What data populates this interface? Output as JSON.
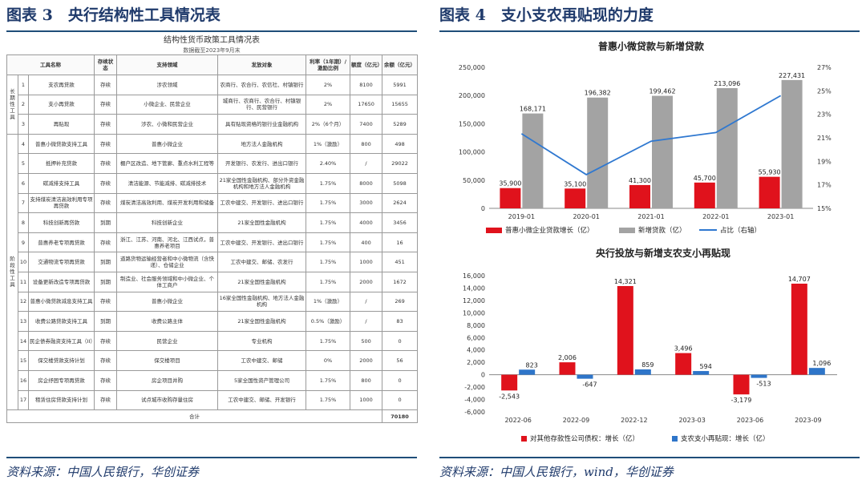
{
  "left": {
    "header": "图表 3　央行结构性工具情况表",
    "source": "资料来源：中国人民银行，华创证券",
    "table": {
      "title": "结构性货币政策工具情况表",
      "subtitle": "数据截至2023年9月末",
      "columns": [
        "工具名称",
        "存续状态",
        "支持领域",
        "发放对象",
        "利率（1年期）/激励比例",
        "额度（亿元）",
        "余额（亿元）"
      ],
      "groups": [
        {
          "label": "长期性工具",
          "rows": 3
        },
        {
          "label": "阶段性工具",
          "rows": 14
        }
      ],
      "rows": [
        [
          "1",
          "支农再贷款",
          "存续",
          "涉农领域",
          "农商行、农合行、农信社、村镇银行",
          "2%",
          "8100",
          "5991"
        ],
        [
          "2",
          "支小再贷款",
          "存续",
          "小微企业、民营企业",
          "城商行、农商行、农合行、村镇银行、民营银行",
          "2%",
          "17650",
          "15655"
        ],
        [
          "3",
          "再贴现",
          "存续",
          "涉农、小微和民营企业",
          "具有贴现资格的银行业金融机构",
          "2%（6个月）",
          "7400",
          "5289"
        ],
        [
          "4",
          "普惠小微贷款支持工具",
          "存续",
          "普惠小微企业",
          "地方法人金融机构",
          "1%（激励）",
          "800",
          "498"
        ],
        [
          "5",
          "抵押补充贷款",
          "存续",
          "棚户区改造、地下管廊、重点水利工程等",
          "开发银行、农发行、进出口银行",
          "2.40%",
          "/",
          "29022"
        ],
        [
          "6",
          "碳减排支持工具",
          "存续",
          "清洁能源、节能减排、碳减排技术",
          "21家全国性金融机构、部分外资金融机构和地方法人金融机构",
          "1.75%",
          "8000",
          "5098"
        ],
        [
          "7",
          "支持煤炭清洁高效利用专项再贷款",
          "存续",
          "煤炭清洁高效利用、煤炭开发利用和储备",
          "工农中建交、开发银行、进出口银行",
          "1.75%",
          "3000",
          "2624"
        ],
        [
          "8",
          "科技创新再贷款",
          "到期",
          "科技创新企业",
          "21家全国性金融机构",
          "1.75%",
          "4000",
          "3456"
        ],
        [
          "9",
          "普惠养老专项再贷款",
          "存续",
          "浙江、江苏、河南、河北、江西试点，普惠养老项目",
          "工农中建交、开发银行、进出口银行",
          "1.75%",
          "400",
          "16"
        ],
        [
          "10",
          "交通物流专项再贷款",
          "到期",
          "道路货物运输经营者和中小微物流（含快递）、仓储企业",
          "工农中建交、邮储、农发行",
          "1.75%",
          "1000",
          "451"
        ],
        [
          "11",
          "设备更新改造专项再贷款",
          "到期",
          "制造业、社会服务领域和中小微企业、个体工商户",
          "21家全国性金融机构",
          "1.75%",
          "2000",
          "1672"
        ],
        [
          "12",
          "普惠小微贷款减息支持工具",
          "存续",
          "普惠小微企业",
          "16家全国性金融机构、地方法人金融机构",
          "1%（激励）",
          "/",
          "269"
        ],
        [
          "13",
          "收费公路贷款支持工具",
          "到期",
          "收费公路主体",
          "21家全国性金融机构",
          "0.5%（激励）",
          "/",
          "83"
        ],
        [
          "14",
          "民企债券融资支持工具（II）",
          "存续",
          "民营企业",
          "专业机构",
          "1.75%",
          "500",
          "0"
        ],
        [
          "15",
          "保交楼贷款支持计划",
          "存续",
          "保交楼项目",
          "工农中建交、邮储",
          "0%",
          "2000",
          "56"
        ],
        [
          "16",
          "房企纾困专项再贷款",
          "存续",
          "房企项目并购",
          "5家全国性资产管理公司",
          "1.75%",
          "800",
          "0"
        ],
        [
          "17",
          "租赁住房贷款支持计划",
          "存续",
          "试点城市收购存量住房",
          "工农中建交、邮储、开发银行",
          "1.75%",
          "1000",
          "0"
        ]
      ],
      "total_label": "合计",
      "total_value": "70180"
    }
  },
  "right": {
    "header": "图表 4　支小支农再贴现的力度",
    "source": "资料来源：中国人民银行，wind，华创证券",
    "colors": {
      "red": "#e0121c",
      "gray": "#a3a3a3",
      "blue": "#2e75c9",
      "line": "#2f78d0"
    },
    "chart_data": [
      {
        "type": "bar",
        "title": "普惠小微贷款与新增贷款",
        "categories": [
          "2019-01",
          "2020-01",
          "2021-01",
          "2022-01",
          "2023-01"
        ],
        "series": [
          {
            "name": "普惠小微企业贷款增长（亿）",
            "type": "bar",
            "values": [
              35900,
              35100,
              41300,
              45700,
              55930
            ],
            "labels": [
              "35,900",
              "35,100",
              "41,300",
              "45,700",
              "55,930"
            ]
          },
          {
            "name": "新增贷款（亿）",
            "type": "bar",
            "values": [
              168171,
              196382,
              199462,
              213096,
              227431
            ],
            "labels": [
              "168,171",
              "196,382",
              "199,462",
              "213,096",
              "227,431"
            ]
          },
          {
            "name": "占比（右轴）",
            "type": "line",
            "axis": "right",
            "values": [
              21.35,
              17.87,
              20.71,
              21.45,
              24.59
            ]
          }
        ],
        "ylim": [
          0,
          250000
        ],
        "yticks": [
          "0",
          "50,000",
          "100,000",
          "150,000",
          "200,000",
          "250,000"
        ],
        "y2lim": [
          15,
          27
        ],
        "y2ticks": [
          "15%",
          "17%",
          "19%",
          "21%",
          "23%",
          "25%",
          "27%"
        ],
        "legend": "bottom"
      },
      {
        "type": "bar",
        "title": "央行投放与新增支农支小再贴现",
        "categories": [
          "2022-06",
          "2022-09",
          "2022-12",
          "2023-03",
          "2023-06",
          "2023-09"
        ],
        "series": [
          {
            "name": "对其他存款性公司债权：增长（亿）",
            "values": [
              -2543,
              2006,
              14321,
              3496,
              -3179,
              14707
            ],
            "labels": [
              "-2,543",
              "2,006",
              "14,321",
              "3,496",
              "-3,179",
              "14,707"
            ]
          },
          {
            "name": "支农支小再贴现：增长（亿）",
            "values": [
              823,
              -647,
              859,
              594,
              -513,
              1096
            ],
            "labels": [
              "823",
              "-647",
              "859",
              "594",
              "-513",
              "1,096"
            ]
          }
        ],
        "ylim": [
          -6000,
          16000
        ],
        "yticks": [
          "-6,000",
          "-4,000",
          "-2,000",
          "0",
          "2,000",
          "4,000",
          "6,000",
          "8,000",
          "10,000",
          "12,000",
          "14,000",
          "16,000"
        ],
        "legend": "bottom"
      }
    ]
  }
}
